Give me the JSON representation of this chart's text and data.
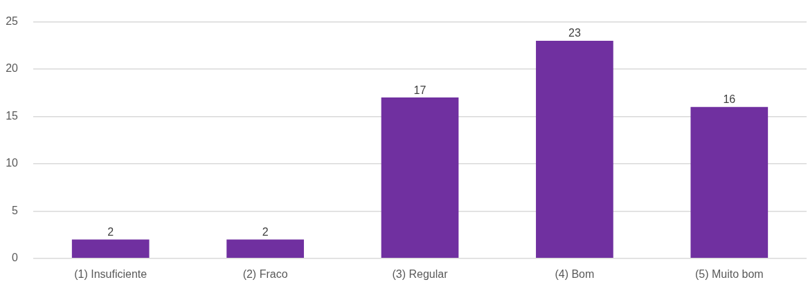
{
  "chart_data": {
    "type": "bar",
    "categories": [
      "(1) Insuficiente",
      "(2) Fraco",
      "(3) Regular",
      "(4) Bom",
      "(5) Muito bom"
    ],
    "values": [
      2,
      2,
      17,
      23,
      16
    ],
    "color": "#7030a0",
    "ylim": [
      0,
      25
    ],
    "yticks": [
      0,
      5,
      10,
      15,
      20,
      25
    ],
    "grid": "y",
    "data_labels": true
  }
}
